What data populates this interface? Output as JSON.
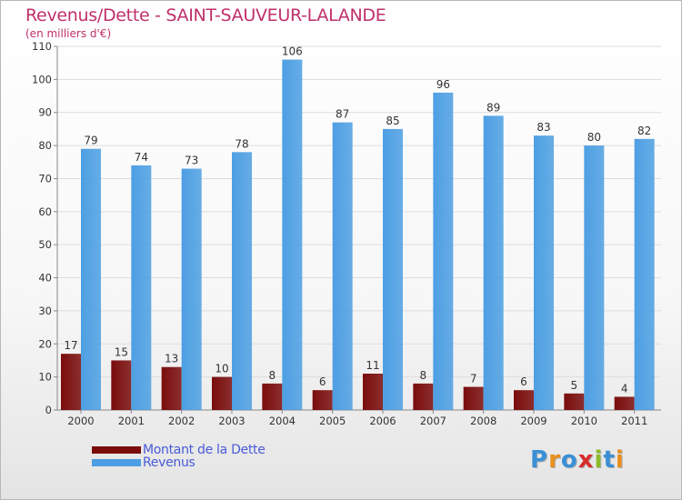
{
  "title": "Revenus/Dette - SAINT-SAUVEUR-LALANDE",
  "subtitle": "(en milliers d'€)",
  "legend": [
    {
      "label": "Montant de la Dette",
      "color": "#7a0c0c"
    },
    {
      "label": "Revenus",
      "color": "#4d9fe3"
    }
  ],
  "logo": {
    "text": "Proxiti",
    "letter_colors": [
      "#3b8fd6",
      "#e98f1c",
      "#3b8fd6",
      "#d92b2b",
      "#8dbb2a",
      "#3b8fd6",
      "#e98f1c"
    ]
  },
  "chart_data": {
    "type": "bar",
    "categories": [
      "2000",
      "2001",
      "2002",
      "2003",
      "2004",
      "2005",
      "2006",
      "2007",
      "2008",
      "2009",
      "2010",
      "2011"
    ],
    "series": [
      {
        "name": "Montant de la Dette",
        "values": [
          17,
          15,
          13,
          10,
          8,
          6,
          11,
          8,
          7,
          6,
          5,
          4
        ],
        "color": "#7a0c0c"
      },
      {
        "name": "Revenus",
        "values": [
          79,
          74,
          73,
          78,
          106,
          87,
          85,
          96,
          89,
          83,
          80,
          82
        ],
        "color": "#4d9fe3"
      }
    ],
    "ylim": [
      0,
      110
    ],
    "yticks": [
      0,
      10,
      20,
      30,
      40,
      50,
      60,
      70,
      80,
      90,
      100,
      110
    ],
    "grid": true,
    "xlabel": "",
    "ylabel": ""
  }
}
